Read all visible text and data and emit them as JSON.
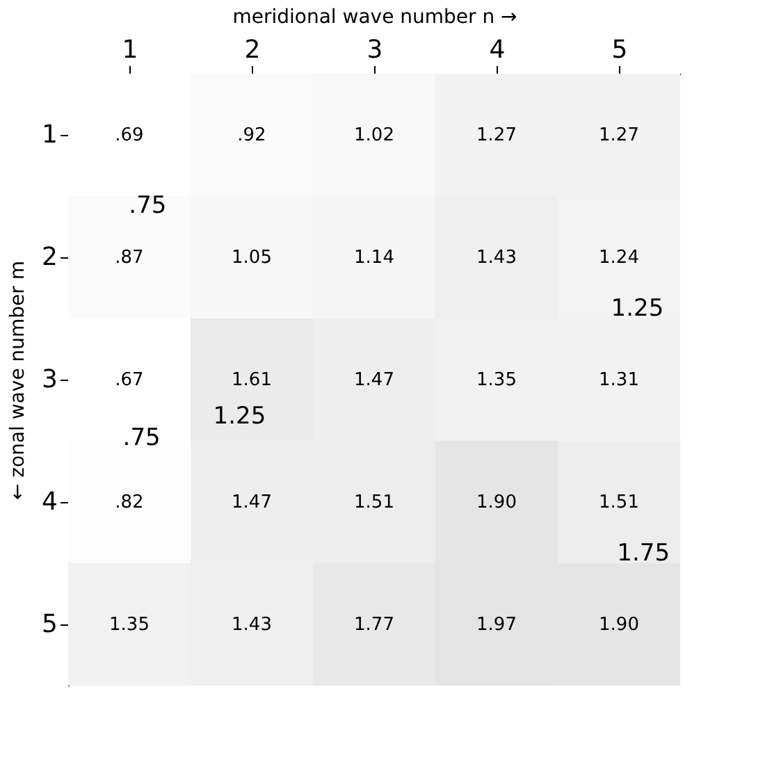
{
  "chart_data": {
    "type": "heatmap",
    "xlabel": "meridional wave number   n →",
    "ylabel": "← zonal wave number   m",
    "categories": [
      "1",
      "2",
      "3",
      "4",
      "5"
    ],
    "y_categories": [
      "1",
      "2",
      "3",
      "4",
      "5"
    ],
    "cells": [
      [
        0.69,
        0.92,
        1.02,
        1.27,
        1.27
      ],
      [
        0.87,
        1.05,
        1.14,
        1.43,
        1.24
      ],
      [
        0.67,
        1.61,
        1.47,
        1.35,
        1.31
      ],
      [
        0.82,
        1.47,
        1.51,
        1.9,
        1.51
      ],
      [
        1.35,
        1.43,
        1.77,
        1.97,
        1.9
      ]
    ],
    "cell_labels": [
      [
        ".69",
        ".92",
        "1.02",
        "1.27",
        "1.27"
      ],
      [
        ".87",
        "1.05",
        "1.14",
        "1.43",
        "1.24"
      ],
      [
        ".67",
        "1.61",
        "1.47",
        "1.35",
        "1.31"
      ],
      [
        ".82",
        "1.47",
        "1.51",
        "1.90",
        "1.51"
      ],
      [
        "1.35",
        "1.43",
        "1.77",
        "1.97",
        "1.90"
      ]
    ],
    "annotations": [
      ".75",
      ".75",
      "1.25",
      "1.25",
      "1.75"
    ]
  }
}
